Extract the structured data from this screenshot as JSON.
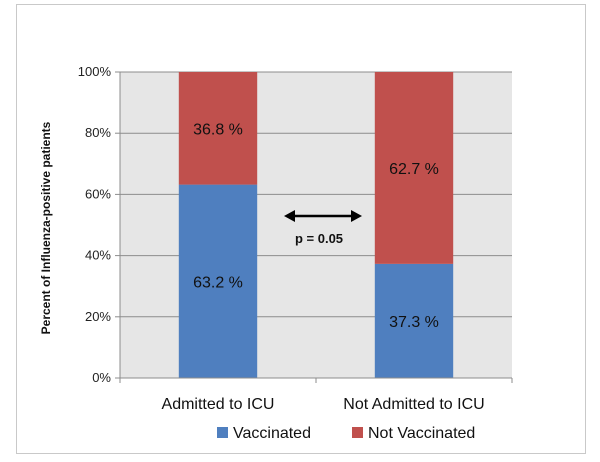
{
  "chart_data": {
    "type": "bar",
    "stacked": true,
    "percent_stacked": true,
    "categories": [
      "Admitted to ICU",
      "Not Admitted to ICU"
    ],
    "series": [
      {
        "name": "Vaccinated",
        "values": [
          63.2,
          37.3
        ],
        "labels": [
          "63.2 %",
          "37.3 %"
        ],
        "color": "#4f7fbf"
      },
      {
        "name": "Not Vaccinated",
        "values": [
          36.8,
          62.7
        ],
        "labels": [
          "36.8 %",
          "62.7 %"
        ],
        "color": "#c0504d"
      }
    ],
    "ylabel": "Percent  of Influenza-positive patients",
    "ylim": [
      0,
      100
    ],
    "yticks": [
      0,
      20,
      40,
      60,
      80,
      100
    ],
    "ytick_labels": [
      "0%",
      "20%",
      "40%",
      "60%",
      "80%",
      "100%"
    ],
    "grid": true,
    "plot_background": "#e6e6e6",
    "legend": "bottom",
    "annotation": "p = 0.05"
  }
}
